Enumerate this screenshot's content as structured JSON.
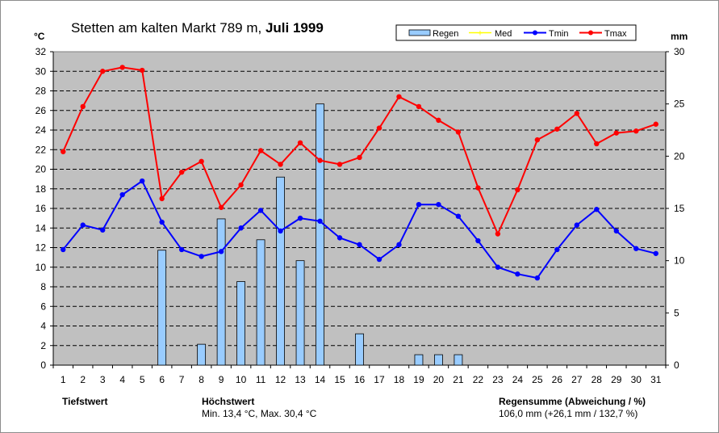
{
  "chart_data": {
    "type": "bar+line",
    "title_prefix": "Stetten am kalten Markt 789 m, ",
    "title_bold": "Juli 1999",
    "y_left_unit": "°C",
    "y_right_unit": "mm",
    "y_left_lim": [
      0,
      32
    ],
    "y_right_lim": [
      0,
      30
    ],
    "y_left_ticks": [
      "0",
      "2",
      "4",
      "6",
      "8",
      "10",
      "12",
      "14",
      "16",
      "18",
      "20",
      "22",
      "24",
      "26",
      "28",
      "30",
      "32"
    ],
    "y_right_ticks": [
      "0",
      "5",
      "10",
      "15",
      "20",
      "25",
      "30"
    ],
    "grid": true,
    "legend": {
      "position": "top-right",
      "items": [
        {
          "label": "Regen",
          "kind": "bar",
          "color": "#99ccff"
        },
        {
          "label": "Med",
          "kind": "line",
          "color": "#ffff00"
        },
        {
          "label": "Tmin",
          "kind": "line",
          "color": "#0000ff"
        },
        {
          "label": "Tmax",
          "kind": "line",
          "color": "#ff0000"
        }
      ]
    },
    "categories": [
      "1",
      "2",
      "3",
      "4",
      "5",
      "6",
      "7",
      "8",
      "9",
      "10",
      "11",
      "12",
      "13",
      "14",
      "15",
      "16",
      "17",
      "18",
      "19",
      "20",
      "21",
      "22",
      "23",
      "24",
      "25",
      "26",
      "27",
      "28",
      "29",
      "30",
      "31"
    ],
    "series": [
      {
        "name": "Regen",
        "axis": "right",
        "color": "#99ccff",
        "values": [
          0,
          0,
          0,
          0,
          0,
          11,
          0,
          2,
          14,
          8,
          12,
          18,
          10,
          25,
          0,
          3,
          0,
          0,
          1,
          1,
          1,
          0,
          0,
          0,
          0,
          0,
          0,
          0,
          0,
          0,
          0
        ]
      },
      {
        "name": "Tmin",
        "axis": "left",
        "color": "#0000ff",
        "values": [
          11.8,
          14.3,
          13.8,
          17.4,
          18.8,
          14.6,
          11.8,
          11.1,
          11.6,
          14.0,
          15.8,
          13.7,
          15.0,
          14.7,
          13.0,
          12.3,
          10.8,
          12.3,
          16.4,
          16.4,
          15.2,
          12.7,
          10.0,
          9.3,
          8.9,
          11.8,
          14.3,
          15.9,
          13.7,
          11.9,
          11.4
        ]
      },
      {
        "name": "Tmax",
        "axis": "left",
        "color": "#ff0000",
        "values": [
          21.8,
          26.4,
          30.0,
          30.4,
          30.1,
          17.0,
          19.7,
          20.8,
          16.1,
          18.4,
          21.9,
          20.5,
          22.7,
          20.9,
          20.5,
          21.2,
          24.2,
          27.4,
          26.4,
          25.0,
          23.8,
          18.1,
          13.4,
          17.9,
          23.0,
          24.1,
          25.7,
          22.6,
          23.7,
          23.9,
          24.6
        ]
      }
    ]
  },
  "footer": {
    "tiefstwert_label": "Tiefstwert",
    "hoechstwert_label": "Höchstwert",
    "hoechstwert_value": "Min. 13,4 °C, Max. 30,4 °C",
    "regensumme_label": "Regensumme (Abweichung / %)",
    "regensumme_value": "106,0 mm (+26,1 mm / 132,7 %)"
  }
}
